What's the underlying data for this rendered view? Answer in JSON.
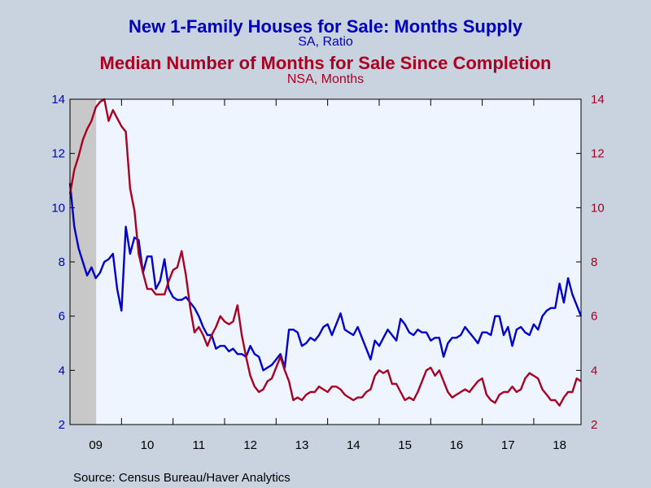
{
  "chart_data": {
    "type": "line",
    "titles": [
      {
        "text": "New 1-Family Houses for Sale: Months Supply",
        "color": "#0000bb"
      },
      {
        "text": "SA, Ratio",
        "color": "#0000bb"
      },
      {
        "text": "Median Number of Months for Sale Since Completion",
        "color": "#aa0022"
      },
      {
        "text": "NSA, Months",
        "color": "#aa0022"
      }
    ],
    "y_left": {
      "min": 2,
      "max": 14,
      "ticks": [
        "2",
        "4",
        "6",
        "8",
        "10",
        "12",
        "14"
      ],
      "color": "#0000bb"
    },
    "y_right": {
      "min": 2,
      "max": 14,
      "ticks": [
        "2",
        "4",
        "6",
        "8",
        "10",
        "12",
        "14"
      ],
      "color": "#aa0022"
    },
    "x_axis": {
      "start": 2009.0,
      "end": 2018.917,
      "ticks": [
        {
          "label": "09",
          "at": 2009.5
        },
        {
          "label": "10",
          "at": 2010.5
        },
        {
          "label": "11",
          "at": 2011.5
        },
        {
          "label": "12",
          "at": 2012.5
        },
        {
          "label": "13",
          "at": 2013.5
        },
        {
          "label": "14",
          "at": 2014.5
        },
        {
          "label": "15",
          "at": 2015.5
        },
        {
          "label": "16",
          "at": 2016.5
        },
        {
          "label": "17",
          "at": 2017.5
        },
        {
          "label": "18",
          "at": 2018.5
        }
      ]
    },
    "recession_shade": {
      "start": 2009.0,
      "end": 2009.5
    },
    "grid": false,
    "series": [
      {
        "axis": "left",
        "color": "#0000cc",
        "start": 2009.0,
        "values": [
          10.9,
          9.3,
          8.5,
          8.0,
          7.5,
          7.8,
          7.4,
          7.6,
          8.0,
          8.1,
          8.3,
          7.0,
          6.2,
          9.3,
          8.3,
          8.9,
          8.8,
          7.6,
          8.2,
          8.2,
          7.0,
          7.3,
          8.1,
          7.0,
          6.7,
          6.6,
          6.6,
          6.7,
          6.5,
          6.3,
          6.0,
          5.6,
          5.3,
          5.3,
          4.8,
          4.9,
          4.9,
          4.7,
          4.8,
          4.6,
          4.6,
          4.5,
          4.9,
          4.6,
          4.5,
          4.0,
          4.1,
          4.2,
          4.4,
          4.6,
          4.1,
          5.5,
          5.5,
          5.4,
          4.9,
          5.0,
          5.2,
          5.1,
          5.3,
          5.6,
          5.7,
          5.3,
          5.7,
          6.1,
          5.5,
          5.4,
          5.3,
          5.6,
          5.2,
          4.8,
          4.4,
          5.1,
          4.9,
          5.2,
          5.5,
          5.3,
          5.1,
          5.9,
          5.7,
          5.4,
          5.3,
          5.5,
          5.4,
          5.4,
          5.1,
          5.2,
          5.2,
          4.5,
          5.0,
          5.2,
          5.2,
          5.3,
          5.6,
          5.4,
          5.2,
          5.0,
          5.4,
          5.4,
          5.3,
          6.0,
          6.0,
          5.3,
          5.6,
          4.9,
          5.5,
          5.6,
          5.4,
          5.3,
          5.7,
          5.5,
          6.0,
          6.2,
          6.3,
          6.3,
          7.2,
          6.5,
          7.4,
          6.8,
          6.4,
          6.0
        ]
      },
      {
        "axis": "right",
        "color": "#aa0022",
        "start": 2009.0,
        "values": [
          10.5,
          11.4,
          11.9,
          12.5,
          12.9,
          13.2,
          13.7,
          13.9,
          14.0,
          13.2,
          13.6,
          13.3,
          13.0,
          12.8,
          10.7,
          9.9,
          8.3,
          7.6,
          7.0,
          7.0,
          6.8,
          6.8,
          6.8,
          7.3,
          7.7,
          7.8,
          8.4,
          7.5,
          6.3,
          5.4,
          5.6,
          5.3,
          4.9,
          5.3,
          5.6,
          6.0,
          5.8,
          5.7,
          5.8,
          6.4,
          5.3,
          4.5,
          3.8,
          3.4,
          3.2,
          3.3,
          3.6,
          3.7,
          4.1,
          4.5,
          4.0,
          3.6,
          2.9,
          3.0,
          2.9,
          3.1,
          3.2,
          3.2,
          3.4,
          3.3,
          3.2,
          3.4,
          3.4,
          3.3,
          3.1,
          3.0,
          2.9,
          3.0,
          3.0,
          3.2,
          3.3,
          3.8,
          4.0,
          3.9,
          4.0,
          3.5,
          3.5,
          3.2,
          2.9,
          3.0,
          2.9,
          3.2,
          3.6,
          4.0,
          4.1,
          3.8,
          4.0,
          3.6,
          3.2,
          3.0,
          3.1,
          3.2,
          3.3,
          3.2,
          3.4,
          3.6,
          3.7,
          3.1,
          2.9,
          2.8,
          3.1,
          3.2,
          3.2,
          3.4,
          3.2,
          3.3,
          3.7,
          3.9,
          3.8,
          3.7,
          3.3,
          3.1,
          2.9,
          2.9,
          2.7,
          3.0,
          3.2,
          3.2,
          3.7,
          3.6
        ]
      }
    ]
  },
  "source": "Source:  Census Bureau/Haver Analytics"
}
